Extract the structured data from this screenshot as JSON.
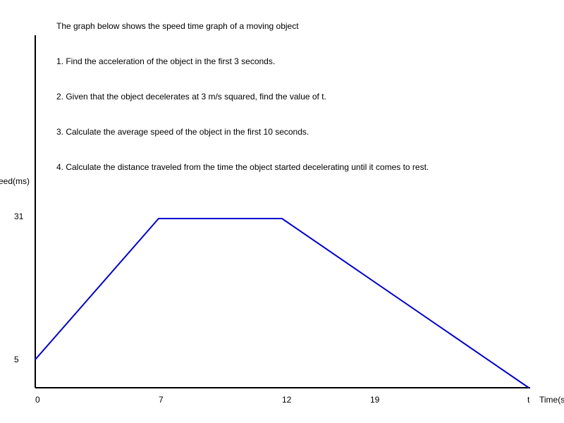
{
  "problem": {
    "intro": "The graph below shows the speed time graph of a moving object",
    "q1": "1. Find the acceleration of the object in the first 3 seconds.",
    "q2": "2. Given that the object decelerates at 3 m/s squared, find the value of t.",
    "q3": "3. Calculate the average speed of the object in the first 10 seconds.",
    "q4": "4. Calculate the distance traveled from the time the object started decelerating until it comes to rest."
  },
  "chart_data": {
    "type": "line",
    "title": "",
    "xlabel": "Time(s",
    "ylabel": "eed(ms)",
    "x_tick_labels": [
      "0",
      "7",
      "12",
      "19",
      "t"
    ],
    "y_tick_labels": [
      "5",
      "31"
    ],
    "series": [
      {
        "x": [
          0,
          7,
          12,
          26
        ],
        "y": [
          5,
          31,
          31,
          0
        ],
        "color": "#0000cc"
      }
    ],
    "grid": false
  }
}
